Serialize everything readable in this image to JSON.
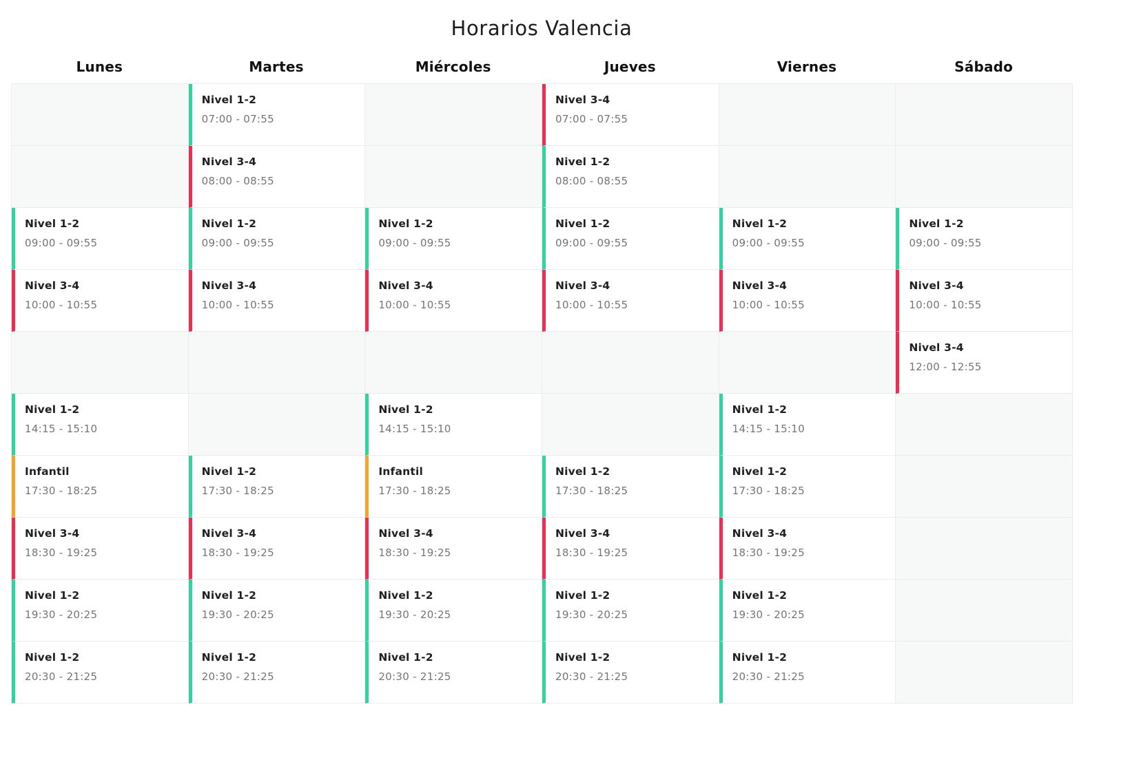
{
  "title": "Horarios Valencia",
  "days": [
    "Lunes",
    "Martes",
    "Miércoles",
    "Jueves",
    "Viernes",
    "Sábado"
  ],
  "level_colors": {
    "nivel_1_2": "#31d3a1",
    "nivel_3_4": "#ed2e52",
    "infantil": "#f2a52e"
  },
  "rows": [
    {
      "cells": [
        null,
        {
          "label": "Nivel 1-2",
          "time": "07:00 - 07:55",
          "color": "nivel_1_2"
        },
        null,
        {
          "label": "Nivel 3-4",
          "time": "07:00 - 07:55",
          "color": "nivel_3_4"
        },
        null,
        null
      ]
    },
    {
      "cells": [
        null,
        {
          "label": "Nivel 3-4",
          "time": "08:00 - 08:55",
          "color": "nivel_3_4"
        },
        null,
        {
          "label": "Nivel 1-2",
          "time": "08:00 - 08:55",
          "color": "nivel_1_2"
        },
        null,
        null
      ]
    },
    {
      "cells": [
        {
          "label": "Nivel 1-2",
          "time": "09:00 - 09:55",
          "color": "nivel_1_2"
        },
        {
          "label": "Nivel 1-2",
          "time": "09:00 - 09:55",
          "color": "nivel_1_2"
        },
        {
          "label": "Nivel 1-2",
          "time": "09:00 - 09:55",
          "color": "nivel_1_2"
        },
        {
          "label": "Nivel 1-2",
          "time": "09:00 - 09:55",
          "color": "nivel_1_2"
        },
        {
          "label": "Nivel 1-2",
          "time": "09:00 - 09:55",
          "color": "nivel_1_2"
        },
        {
          "label": "Nivel 1-2",
          "time": "09:00 - 09:55",
          "color": "nivel_1_2"
        }
      ]
    },
    {
      "cells": [
        {
          "label": "Nivel 3-4",
          "time": "10:00 - 10:55",
          "color": "nivel_3_4"
        },
        {
          "label": "Nivel 3-4",
          "time": "10:00 - 10:55",
          "color": "nivel_3_4"
        },
        {
          "label": "Nivel 3-4",
          "time": "10:00 - 10:55",
          "color": "nivel_3_4"
        },
        {
          "label": "Nivel 3-4",
          "time": "10:00 - 10:55",
          "color": "nivel_3_4"
        },
        {
          "label": "Nivel 3-4",
          "time": "10:00 - 10:55",
          "color": "nivel_3_4"
        },
        {
          "label": "Nivel 3-4",
          "time": "10:00 - 10:55",
          "color": "nivel_3_4"
        }
      ]
    },
    {
      "cells": [
        null,
        null,
        null,
        null,
        null,
        {
          "label": "Nivel 3-4",
          "time": "12:00 - 12:55",
          "color": "nivel_3_4"
        }
      ]
    },
    {
      "cells": [
        {
          "label": "Nivel 1-2",
          "time": "14:15 - 15:10",
          "color": "nivel_1_2"
        },
        null,
        {
          "label": "Nivel 1-2",
          "time": "14:15 - 15:10",
          "color": "nivel_1_2"
        },
        null,
        {
          "label": "Nivel 1-2",
          "time": "14:15 - 15:10",
          "color": "nivel_1_2"
        },
        null
      ]
    },
    {
      "cells": [
        {
          "label": "Infantil",
          "time": "17:30 - 18:25",
          "color": "infantil"
        },
        {
          "label": "Nivel 1-2",
          "time": "17:30 - 18:25",
          "color": "nivel_1_2"
        },
        {
          "label": "Infantil",
          "time": "17:30 - 18:25",
          "color": "infantil"
        },
        {
          "label": "Nivel 1-2",
          "time": "17:30 - 18:25",
          "color": "nivel_1_2"
        },
        {
          "label": "Nivel 1-2",
          "time": "17:30 - 18:25",
          "color": "nivel_1_2"
        },
        null
      ]
    },
    {
      "cells": [
        {
          "label": "Nivel 3-4",
          "time": "18:30 - 19:25",
          "color": "nivel_3_4"
        },
        {
          "label": "Nivel 3-4",
          "time": "18:30 - 19:25",
          "color": "nivel_3_4"
        },
        {
          "label": "Nivel 3-4",
          "time": "18:30 - 19:25",
          "color": "nivel_3_4"
        },
        {
          "label": "Nivel 3-4",
          "time": "18:30 - 19:25",
          "color": "nivel_3_4"
        },
        {
          "label": "Nivel 3-4",
          "time": "18:30 - 19:25",
          "color": "nivel_3_4"
        },
        null
      ]
    },
    {
      "cells": [
        {
          "label": "Nivel 1-2",
          "time": "19:30 - 20:25",
          "color": "nivel_1_2"
        },
        {
          "label": "Nivel 1-2",
          "time": "19:30 - 20:25",
          "color": "nivel_1_2"
        },
        {
          "label": "Nivel 1-2",
          "time": "19:30 - 20:25",
          "color": "nivel_1_2"
        },
        {
          "label": "Nivel 1-2",
          "time": "19:30 - 20:25",
          "color": "nivel_1_2"
        },
        {
          "label": "Nivel 1-2",
          "time": "19:30 - 20:25",
          "color": "nivel_1_2"
        },
        null
      ]
    },
    {
      "cells": [
        {
          "label": "Nivel 1-2",
          "time": "20:30 - 21:25",
          "color": "nivel_1_2"
        },
        {
          "label": "Nivel 1-2",
          "time": "20:30 - 21:25",
          "color": "nivel_1_2"
        },
        {
          "label": "Nivel 1-2",
          "time": "20:30 - 21:25",
          "color": "nivel_1_2"
        },
        {
          "label": "Nivel 1-2",
          "time": "20:30 - 21:25",
          "color": "nivel_1_2"
        },
        {
          "label": "Nivel 1-2",
          "time": "20:30 - 21:25",
          "color": "nivel_1_2"
        },
        null
      ]
    }
  ]
}
